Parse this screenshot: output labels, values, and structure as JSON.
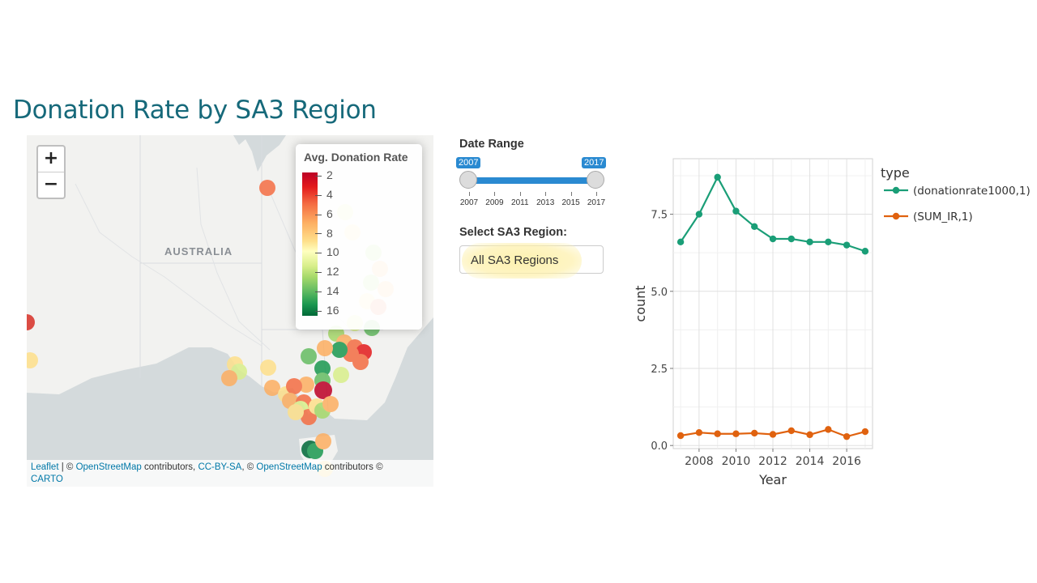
{
  "page": {
    "title": "Donation Rate by SA3 Region"
  },
  "map": {
    "zoom_in_label": "+",
    "zoom_out_label": "−",
    "country_label": "AUSTRALIA",
    "legend": {
      "title": "Avg. Donation Rate",
      "ticks": [
        "2",
        "4",
        "6",
        "8",
        "10",
        "12",
        "14",
        "16"
      ]
    },
    "attribution": {
      "leaflet": "Leaflet",
      "sep1": " | © ",
      "osm1": "OpenStreetMap",
      "mid1": " contributors, ",
      "ccbysa": "CC-BY-SA",
      "mid2": ", © ",
      "osm2": "OpenStreetMap",
      "mid3": " contributors © ",
      "carto": "CARTO"
    }
  },
  "controls": {
    "date_range": {
      "label": "Date Range",
      "from": "2007",
      "to": "2017",
      "ticks": [
        "2007",
        "2009",
        "2011",
        "2013",
        "2015",
        "2017"
      ]
    },
    "region": {
      "label": "Select SA3 Region:",
      "selected": "All SA3 Regions"
    }
  },
  "chart_data": {
    "type": "line",
    "xlabel": "Year",
    "ylabel": "count",
    "xlim": [
      2006.6,
      2017.4
    ],
    "ylim": [
      -0.1,
      9.3
    ],
    "x_ticks": [
      "2008",
      "2010",
      "2012",
      "2014",
      "2016"
    ],
    "y_ticks": [
      "0.0",
      "2.5",
      "5.0",
      "7.5"
    ],
    "grid": true,
    "legend_title": "type",
    "legend_position": "right",
    "x": [
      2007,
      2008,
      2009,
      2010,
      2011,
      2012,
      2013,
      2014,
      2015,
      2016,
      2017
    ],
    "series": [
      {
        "name": "(donationrate1000,1)",
        "color": "#1a9e77",
        "values": [
          6.6,
          7.5,
          8.7,
          7.6,
          7.1,
          6.7,
          6.7,
          6.6,
          6.6,
          6.5,
          6.3
        ]
      },
      {
        "name": "(SUM_IR,1)",
        "color": "#e0620f",
        "values": [
          0.32,
          0.42,
          0.38,
          0.38,
          0.4,
          0.36,
          0.48,
          0.35,
          0.52,
          0.29,
          0.45
        ]
      }
    ]
  }
}
